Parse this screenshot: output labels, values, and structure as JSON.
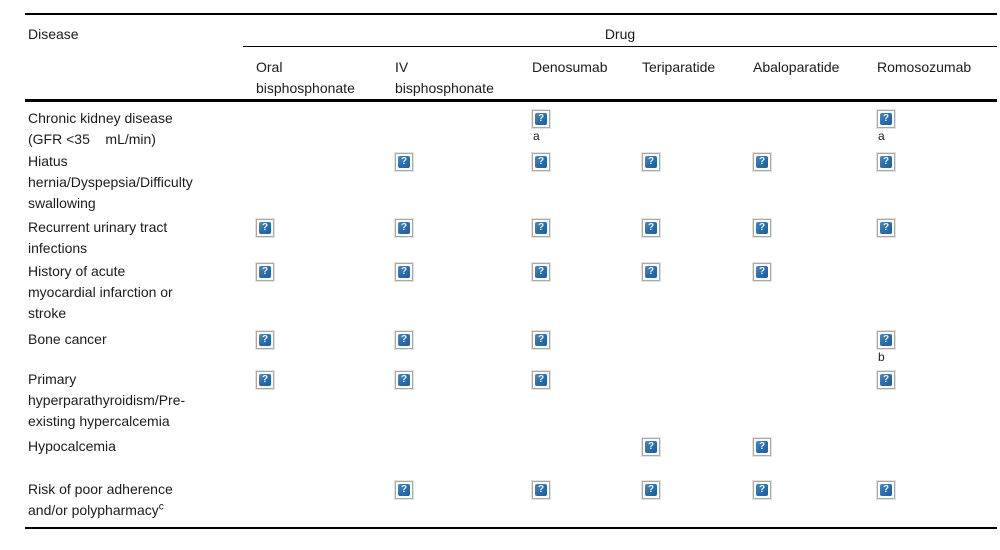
{
  "table": {
    "corner_header": "Disease",
    "group_header": "Drug",
    "columns": [
      "Oral\nbisphosphonate",
      "IV\nbisphosphonate",
      "Denosumab",
      "Teriparatide",
      "Abaloparatide",
      "Romosozumab"
    ],
    "broken_image_icon": {
      "name": "broken-image-placeholder",
      "glyph": "?",
      "color": "#2a6cab"
    },
    "footnotes_visible": [
      "a",
      "b",
      "c"
    ],
    "rows": [
      {
        "disease": "Chronic kidney disease\n(GFR <35    mL/min)",
        "cells": [
          null,
          null,
          "a",
          null,
          null,
          "a"
        ]
      },
      {
        "disease": "Hiatus\nhernia/Dyspepsia/Difficulty\nswallowing",
        "cells": [
          null,
          "",
          "",
          "",
          "",
          ""
        ]
      },
      {
        "disease": "Recurrent urinary tract\ninfections",
        "cells": [
          "",
          "",
          "",
          "",
          "",
          ""
        ]
      },
      {
        "disease": "History of acute\nmyocardial infarction or\nstroke",
        "cells": [
          "",
          "",
          "",
          "",
          "",
          null
        ]
      },
      {
        "disease": "Bone cancer",
        "cells": [
          "",
          "",
          "",
          null,
          null,
          "b"
        ]
      },
      {
        "disease": "Primary\nhyperparathyroidism/Pre-\nexisting hypercalcemia",
        "cells": [
          "",
          "",
          "",
          null,
          null,
          ""
        ]
      },
      {
        "disease": "Hypocalcemia",
        "cells": [
          null,
          null,
          null,
          "",
          "",
          null
        ]
      },
      {
        "disease": "Risk of poor adherence\nand/or polypharmacy",
        "sup": "c",
        "cells": [
          null,
          "",
          "",
          "",
          "",
          ""
        ]
      }
    ]
  }
}
